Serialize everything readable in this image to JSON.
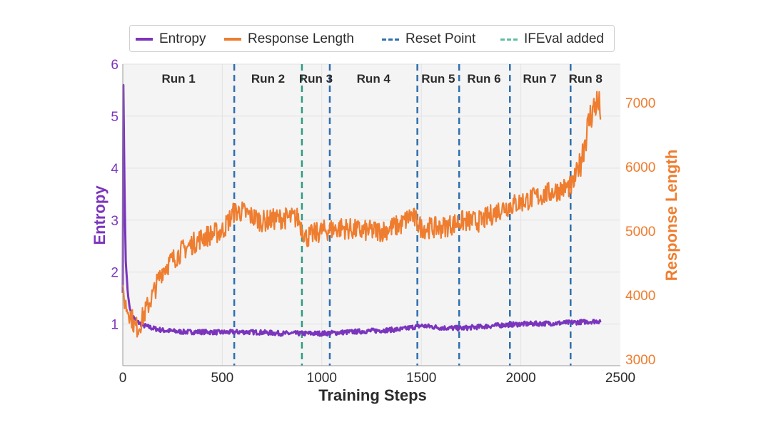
{
  "chart_data": {
    "type": "line",
    "xlabel": "Training Steps",
    "ylabel_left": "Entropy",
    "ylabel_right": "Response Length",
    "xlim": [
      0,
      2500
    ],
    "ylim_left": [
      0.2,
      6
    ],
    "ylim_right": [
      2900,
      7600
    ],
    "x_ticks": [
      "0",
      "500",
      "1000",
      "1500",
      "2000",
      "2500"
    ],
    "x_tick_values": [
      0,
      500,
      1000,
      1500,
      2000,
      2500
    ],
    "y_left_ticks": [
      "1",
      "2",
      "3",
      "4",
      "5",
      "6"
    ],
    "y_left_tick_values": [
      1,
      2,
      3,
      4,
      5,
      6
    ],
    "y_right_ticks": [
      "3000",
      "4000",
      "5000",
      "6000",
      "7000"
    ],
    "y_right_tick_values": [
      3000,
      4000,
      5000,
      6000,
      7000
    ],
    "grid": true,
    "legend_position": "top",
    "legend": [
      {
        "label": "Entropy",
        "style": "solid",
        "color": "#7b35bd"
      },
      {
        "label": "Response Length",
        "style": "solid",
        "color": "#ef7d2f"
      },
      {
        "label": "Reset Point",
        "style": "dashed",
        "color": "#2f6fad"
      },
      {
        "label": "IFEval added",
        "style": "dashed",
        "color": "#5fbf9e"
      }
    ],
    "series": [
      {
        "name": "Entropy",
        "axis": "left",
        "color": "#7b35bd",
        "x": [
          0,
          3,
          8,
          15,
          25,
          35,
          50,
          70,
          100,
          150,
          200,
          300,
          400,
          500,
          600,
          700,
          800,
          900,
          1000,
          1100,
          1200,
          1300,
          1400,
          1500,
          1600,
          1700,
          1800,
          1900,
          2000,
          2100,
          2200,
          2300,
          2400
        ],
        "values": [
          1.6,
          5.6,
          3.8,
          2.2,
          1.6,
          1.3,
          1.15,
          1.05,
          0.98,
          0.92,
          0.88,
          0.85,
          0.85,
          0.84,
          0.85,
          0.84,
          0.82,
          0.82,
          0.82,
          0.84,
          0.86,
          0.88,
          0.9,
          0.97,
          0.93,
          0.92,
          0.95,
          0.98,
          1.0,
          1.01,
          1.02,
          1.04,
          1.06
        ]
      },
      {
        "name": "Response Length",
        "axis": "right",
        "color": "#ef7d2f",
        "x": [
          0,
          10,
          20,
          40,
          60,
          80,
          100,
          150,
          200,
          300,
          400,
          500,
          560,
          600,
          700,
          800,
          880,
          920,
          1000,
          1100,
          1200,
          1300,
          1400,
          1450,
          1500,
          1600,
          1700,
          1800,
          1900,
          2000,
          2100,
          2200,
          2260,
          2300,
          2350,
          2380,
          2400
        ],
        "values": [
          4000,
          3900,
          3800,
          3700,
          3500,
          3500,
          3650,
          4000,
          4400,
          4700,
          4900,
          5000,
          5300,
          5300,
          5150,
          5200,
          5200,
          4900,
          5000,
          5050,
          5000,
          5000,
          5100,
          5250,
          5050,
          5050,
          5150,
          5150,
          5350,
          5450,
          5550,
          5650,
          5700,
          6100,
          6800,
          7000,
          6900
        ]
      }
    ],
    "reset_points": [
      560,
      1040,
      1480,
      1690,
      1945,
      2250
    ],
    "ifeval_point": 900,
    "runs": [
      {
        "label": "Run 1",
        "x": 280
      },
      {
        "label": "Run 2",
        "x": 730
      },
      {
        "label": "Run 3",
        "x": 970
      },
      {
        "label": "Run 4",
        "x": 1260
      },
      {
        "label": "Run 5",
        "x": 1585
      },
      {
        "label": "Run 6",
        "x": 1815
      },
      {
        "label": "Run 7",
        "x": 2095
      },
      {
        "label": "Run 8",
        "x": 2325
      }
    ]
  }
}
